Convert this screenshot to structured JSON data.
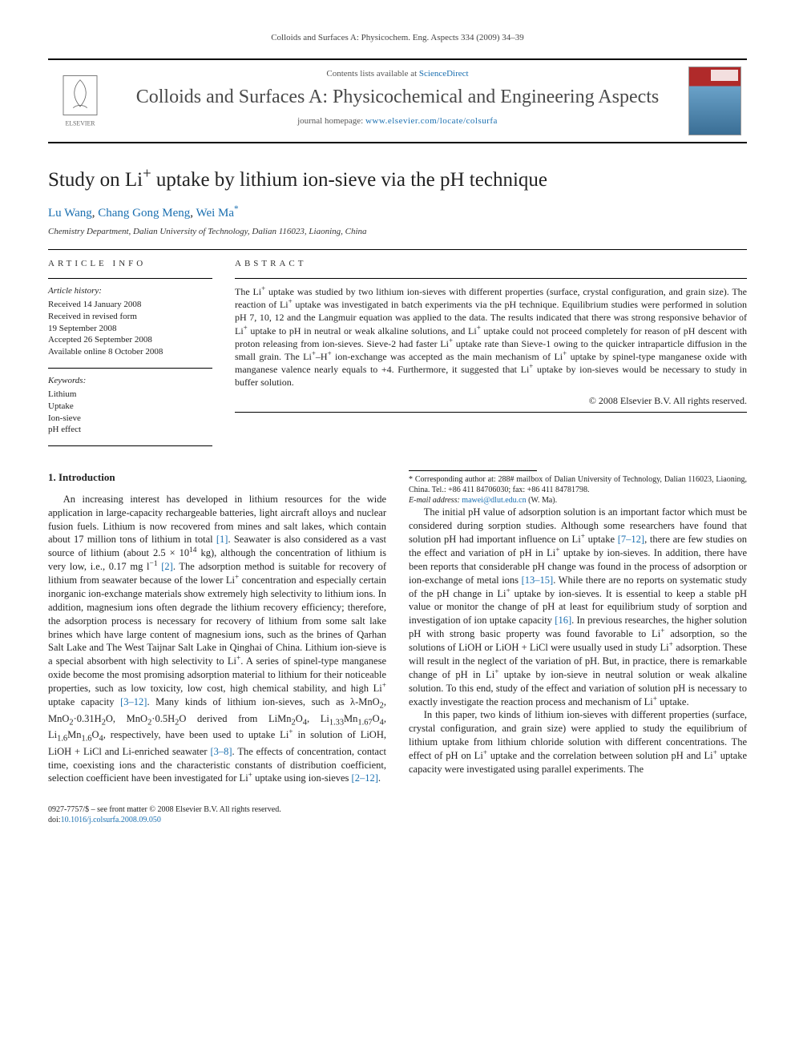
{
  "running_head": "Colloids and Surfaces A: Physicochem. Eng. Aspects 334 (2009) 34–39",
  "header": {
    "contents_prefix": "Contents lists available at ",
    "contents_link": "ScienceDirect",
    "journal_name": "Colloids and Surfaces A: Physicochemical and Engineering Aspects",
    "homepage_prefix": "journal homepage: ",
    "homepage_link": "www.elsevier.com/locate/colsurfa",
    "publisher_label": "ELSEVIER"
  },
  "title_html": "Study on Li<sup>+</sup> uptake by lithium ion-sieve via the pH technique",
  "authors": {
    "a1": "Lu Wang",
    "a2": "Chang Gong Meng",
    "a3": "Wei Ma",
    "corr_mark": "*"
  },
  "affiliation": "Chemistry Department, Dalian University of Technology, Dalian 116023, Liaoning, China",
  "article_info": {
    "label": "ARTICLE INFO",
    "history_hd": "Article history:",
    "received": "Received 14 January 2008",
    "revised1": "Received in revised form",
    "revised2": "19 September 2008",
    "accepted": "Accepted 26 September 2008",
    "online": "Available online 8 October 2008",
    "keywords_hd": "Keywords:",
    "kw1": "Lithium",
    "kw2": "Uptake",
    "kw3": "Ion-sieve",
    "kw4": "pH effect"
  },
  "abstract": {
    "label": "ABSTRACT",
    "text_html": "The Li<sup>+</sup> uptake was studied by two lithium ion-sieves with different properties (surface, crystal configuration, and grain size). The reaction of Li<sup>+</sup> uptake was investigated in batch experiments via the pH technique. Equilibrium studies were performed in solution pH 7, 10, 12 and the Langmuir equation was applied to the data. The results indicated that there was strong responsive behavior of Li<sup>+</sup> uptake to pH in neutral or weak alkaline solutions, and Li<sup>+</sup> uptake could not proceed completely for reason of pH descent with proton releasing from ion-sieves. Sieve-2 had faster Li<sup>+</sup> uptake rate than Sieve-1 owing to the quicker intraparticle diffusion in the small grain. The Li<sup>+</sup>–H<sup>+</sup> ion-exchange was accepted as the main mechanism of Li<sup>+</sup> uptake by spinel-type manganese oxide with manganese valence nearly equals to +4. Furthermore, it suggested that Li<sup>+</sup> uptake by ion-sieves would be necessary to study in buffer solution.",
    "copyright": "© 2008 Elsevier B.V. All rights reserved."
  },
  "section1": {
    "heading": "1. Introduction",
    "p1_html": "An increasing interest has developed in lithium resources for the wide application in large-capacity rechargeable batteries, light aircraft alloys and nuclear fusion fuels. Lithium is now recovered from mines and salt lakes, which contain about 17 million tons of lithium in total <a class=\"ref-link\" href=\"#\">[1]</a>. Seawater is also considered as a vast source of lithium (about 2.5 × 10<sup>14</sup> kg), although the concentration of lithium is very low, i.e., 0.17 mg l<sup>−1</sup> <a class=\"ref-link\" href=\"#\">[2]</a>. The adsorption method is suitable for recovery of lithium from seawater because of the lower Li<sup>+</sup> concentration and especially certain inorganic ion-exchange materials show extremely high selectivity to lithium ions. In addition, magnesium ions often degrade the lithium recovery efficiency; therefore, the adsorption process is necessary for recovery of lithium from some salt lake brines which have large content of magnesium ions, such as the brines of Qarhan Salt Lake and The West Taijnar Salt Lake in Qinghai of China. Lithium ion-sieve is a special absorbent with high selectivity to Li<sup>+</sup>. A series of spinel-type manganese oxide become the most promising adsorption material to lithium for their noticeable properties, such as low toxicity, low cost, high chemical stability, and high Li<sup>+</sup> uptake capacity <a class=\"ref-link\" href=\"#\">[3–12]</a>. Many kinds of lithium ion-sieves, such as λ-MnO<sub>2</sub>, MnO<sub>2</sub>·0.31H<sub>2</sub>O, MnO<sub>2</sub>·0.5H<sub>2</sub>O derived from LiMn<sub>2</sub>O<sub>4</sub>, Li<sub>1.33</sub>Mn<sub>1.67</sub>O<sub>4</sub>, Li<sub>1.6</sub>Mn<sub>1.6</sub>O<sub>4</sub>, respectively, have been used to uptake Li<sup>+</sup> in solution of LiOH, LiOH + LiCl and Li-enriched seawater <a class=\"ref-link\" href=\"#\">[3–8]</a>. The effects of concentration, contact time, coexisting ions and the characteristic constants of distribution coefficient, selection coefficient have been investigated for Li<sup>+</sup> uptake using ion-sieves <a class=\"ref-link\" href=\"#\">[2–12]</a>.",
    "p2_html": "The initial pH value of adsorption solution is an important factor which must be considered during sorption studies. Although some researchers have found that solution pH had important influence on Li<sup>+</sup> uptake <a class=\"ref-link\" href=\"#\">[7–12]</a>, there are few studies on the effect and variation of pH in Li<sup>+</sup> uptake by ion-sieves. In addition, there have been reports that considerable pH change was found in the process of adsorption or ion-exchange of metal ions <a class=\"ref-link\" href=\"#\">[13–15]</a>. While there are no reports on systematic study of the pH change in Li<sup>+</sup> uptake by ion-sieves. It is essential to keep a stable pH value or monitor the change of pH at least for equilibrium study of sorption and investigation of ion uptake capacity <a class=\"ref-link\" href=\"#\">[16]</a>. In previous researches, the higher solution pH with strong basic property was found favorable to Li<sup>+</sup> adsorption, so the solutions of LiOH or LiOH + LiCl were usually used in study Li<sup>+</sup> adsorption. These will result in the neglect of the variation of pH. But, in practice, there is remarkable change of pH in Li<sup>+</sup> uptake by ion-sieve in neutral solution or weak alkaline solution. To this end, study of the effect and variation of solution pH is necessary to exactly investigate the reaction process and mechanism of Li<sup>+</sup> uptake.",
    "p3_html": "In this paper, two kinds of lithium ion-sieves with different properties (surface, crystal configuration, and grain size) were applied to study the equilibrium of lithium uptake from lithium chloride solution with different concentrations. The effect of pH on Li<sup>+</sup> uptake and the correlation between solution pH and Li<sup>+</sup> uptake capacity were investigated using parallel experiments. The"
  },
  "footnote": {
    "corr_html": "* Corresponding author at: 288# mailbox of Dalian University of Technology, Dalian 116023, Liaoning, China. Tel.: +86 411 84706030; fax: +86 411 84781798.",
    "email_label": "E-mail address:",
    "email": "mawei@dlut.edu.cn",
    "email_suffix": "(W. Ma)."
  },
  "footer": {
    "issn_line": "0927-7757/$ – see front matter © 2008 Elsevier B.V. All rights reserved.",
    "doi_prefix": "doi:",
    "doi": "10.1016/j.colsurfa.2008.09.050"
  },
  "colors": {
    "link": "#1a6fb0",
    "text": "#222222",
    "rule": "#000000",
    "cover_top": "#b02a2a",
    "cover_bottom": "#3a6e95"
  }
}
